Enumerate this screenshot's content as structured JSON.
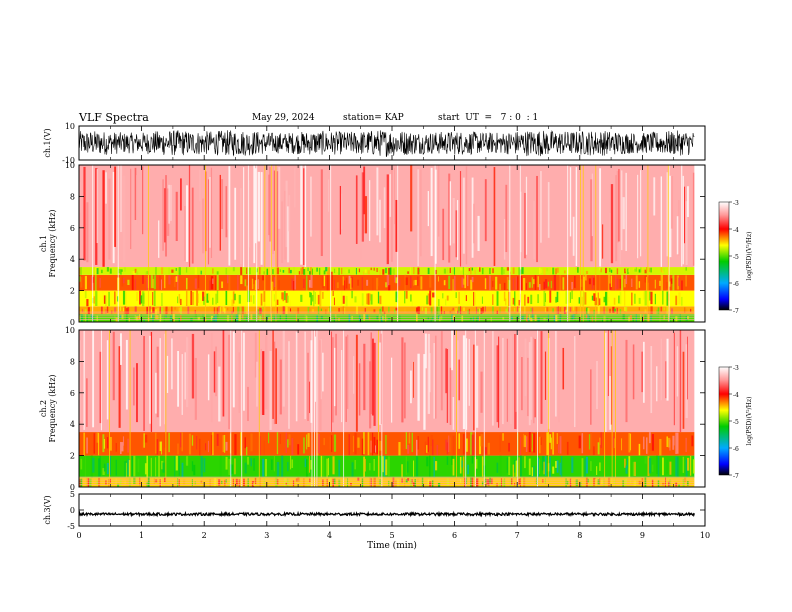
{
  "header": {
    "title": "VLF Spectra",
    "date": "May 29, 2024",
    "station": "station= KAP",
    "start": "start  UT  =   7 : 0  : 1"
  },
  "colors": {
    "background": "#ff4d4d",
    "speckle": "#ffffff",
    "band": "#ffff00",
    "green": "#00cc00"
  },
  "chart_data": [
    {
      "type": "line",
      "panel": "ch1-waveform",
      "ylabel": "ch.1(V)",
      "ylim": [
        -10,
        10
      ],
      "yticks": [
        "10",
        "-10"
      ],
      "xlim": [
        0,
        10
      ],
      "data_extent_min": 9.83,
      "description_values": {
        "mean": 0,
        "amplitude": 8
      }
    },
    {
      "type": "heatmap",
      "panel": "ch1-spectrogram",
      "ylabel": "ch.1\nFrequency (kHz)",
      "ylabel_lines": [
        "ch.1",
        "Frequency (kHz)"
      ],
      "ylim": [
        0,
        10
      ],
      "yticks": [
        "0",
        "2",
        "4",
        "6",
        "8",
        "10"
      ],
      "xlim": [
        0,
        10
      ],
      "colorbar": {
        "label": "log(PSD)(V²/Hz)",
        "range": [
          -7,
          -3
        ],
        "ticks": [
          "-3",
          "-4",
          "-5",
          "-6",
          "-7"
        ]
      },
      "bands_khz": [
        {
          "from": 0.0,
          "to": 0.5,
          "level": -5.0
        },
        {
          "from": 0.5,
          "to": 1.0,
          "level": -4.4
        },
        {
          "from": 1.0,
          "to": 2.0,
          "level": -4.6
        },
        {
          "from": 2.0,
          "to": 3.0,
          "level": -4.2
        },
        {
          "from": 3.0,
          "to": 3.5,
          "level": -4.7
        },
        {
          "from": 3.5,
          "to": 10.0,
          "level": -3.4
        }
      ]
    },
    {
      "type": "heatmap",
      "panel": "ch2-spectrogram",
      "ylabel_lines": [
        "ch.2",
        "Frequency (kHz)"
      ],
      "ylim": [
        0,
        10
      ],
      "yticks": [
        "0",
        "2",
        "4",
        "6",
        "8",
        "10"
      ],
      "xlim": [
        0,
        10
      ],
      "colorbar": {
        "label": "log(PSD)(V²/Hz)",
        "range": [
          -7,
          -3
        ],
        "ticks": [
          "-3",
          "-4",
          "-5",
          "-6",
          "-7"
        ]
      },
      "bands_khz": [
        {
          "from": 0.0,
          "to": 0.6,
          "level": -4.5
        },
        {
          "from": 0.6,
          "to": 2.0,
          "level": -5.1
        },
        {
          "from": 2.0,
          "to": 3.5,
          "level": -4.2
        },
        {
          "from": 3.5,
          "to": 10.0,
          "level": -3.4
        }
      ]
    },
    {
      "type": "line",
      "panel": "ch3-waveform",
      "ylabel": "ch.3(V)",
      "ylim": [
        -5,
        5
      ],
      "yticks": [
        "5",
        "0",
        "-5"
      ],
      "xlim": [
        0,
        10
      ],
      "xlabel": "Time  (min)",
      "xticks": [
        "0",
        "1",
        "2",
        "3",
        "4",
        "5",
        "6",
        "7",
        "8",
        "9",
        "10"
      ],
      "description_values": {
        "mean": -1.3,
        "amplitude": 0.4
      }
    }
  ]
}
